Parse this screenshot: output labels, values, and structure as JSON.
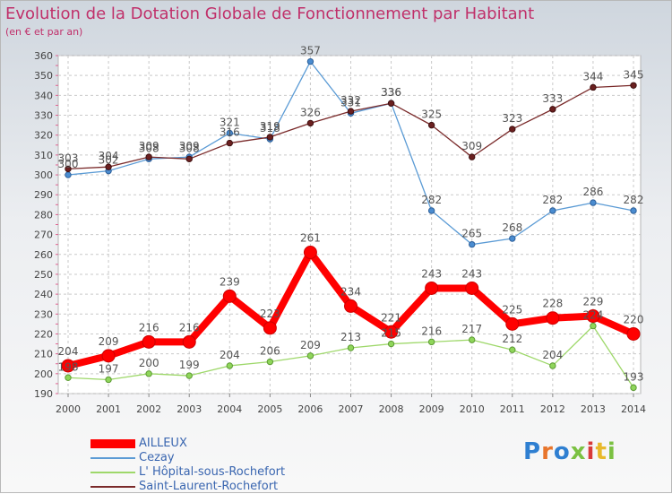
{
  "chart_data": {
    "type": "line",
    "title": "Evolution de la Dotation Globale de Fonctionnement par Habitant",
    "subtitle": "(en € et par an)",
    "xlabel": "",
    "ylabel": "",
    "ylim": [
      190,
      360
    ],
    "yticks": [
      190,
      200,
      210,
      220,
      230,
      240,
      250,
      260,
      270,
      280,
      290,
      300,
      310,
      320,
      330,
      340,
      350,
      360
    ],
    "categories": [
      "2000",
      "2001",
      "2002",
      "2003",
      "2004",
      "2005",
      "2006",
      "2007",
      "2008",
      "2009",
      "2010",
      "2011",
      "2012",
      "2013",
      "2014"
    ],
    "grid": true,
    "legend_position": "bottom-left",
    "series": [
      {
        "name": "AILLEUX",
        "color": "#ff0000",
        "values": [
          204,
          209,
          216,
          216,
          239,
          223,
          261,
          234,
          221,
          243,
          243,
          225,
          228,
          229,
          220
        ]
      },
      {
        "name": "Cezay",
        "color": "#5b9bd5",
        "values": [
          300,
          302,
          308,
          309,
          321,
          318,
          357,
          331,
          336,
          282,
          265,
          268,
          282,
          286,
          282
        ]
      },
      {
        "name": "L' Hôpital-sous-Rochefort",
        "color": "#9ed86a",
        "values": [
          198,
          197,
          200,
          199,
          204,
          206,
          209,
          213,
          215,
          216,
          217,
          212,
          204,
          224,
          193
        ]
      },
      {
        "name": "Saint-Laurent-Rochefort",
        "color": "#7a2a2a",
        "values": [
          303,
          304,
          309,
          308,
          316,
          319,
          326,
          332,
          336,
          325,
          309,
          323,
          333,
          344,
          345
        ]
      }
    ]
  },
  "logo": {
    "text": "Proxiti",
    "letter_colors": [
      "#2f7fd1",
      "#e8752c",
      "#2f7fd1",
      "#7bc142",
      "#d83a3a",
      "#e8b92c",
      "#7bc142"
    ]
  }
}
